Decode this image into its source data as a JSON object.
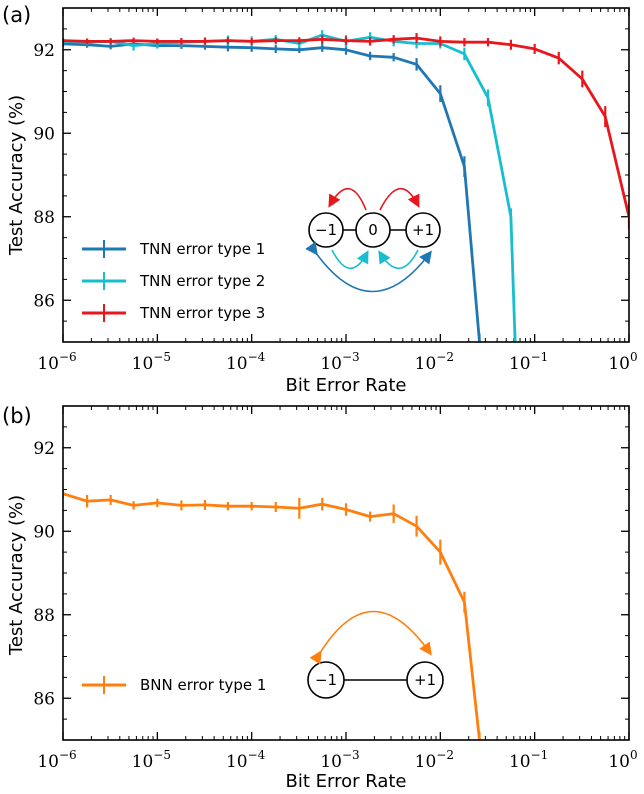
{
  "chart_data": [
    {
      "type": "line",
      "panel_label": "(a)",
      "xlabel": "Bit Error Rate",
      "ylabel": "Test Accuracy (%)",
      "xscale": "log",
      "xlim": [
        1e-06,
        1
      ],
      "ylim": [
        85,
        93
      ],
      "x_ticks": [
        1e-06,
        1e-05,
        0.0001,
        0.001,
        0.01,
        0.1,
        1
      ],
      "x_tick_labels": [
        {
          "base": "10",
          "exp": "−6"
        },
        {
          "base": "10",
          "exp": "−5"
        },
        {
          "base": "10",
          "exp": "−4"
        },
        {
          "base": "10",
          "exp": "−3"
        },
        {
          "base": "10",
          "exp": "−2"
        },
        {
          "base": "10",
          "exp": "−1"
        },
        {
          "base": "10",
          "exp": "0"
        }
      ],
      "y_ticks": [
        86,
        88,
        90,
        92
      ],
      "legend_position": "lower-left",
      "series": [
        {
          "name": "TNN error type 1",
          "color": "#1f77b4",
          "points": [
            [
              1e-06,
              92.14,
              0.07
            ],
            [
              1.8e-06,
              92.12,
              0.07
            ],
            [
              3.2e-06,
              92.08,
              0.07
            ],
            [
              5.6e-06,
              92.14,
              0.08
            ],
            [
              1e-05,
              92.1,
              0.07
            ],
            [
              1.8e-05,
              92.1,
              0.08
            ],
            [
              3.2e-05,
              92.08,
              0.08
            ],
            [
              5.6e-05,
              92.06,
              0.1
            ],
            [
              0.0001,
              92.05,
              0.1
            ],
            [
              0.00018,
              92.02,
              0.1
            ],
            [
              0.00032,
              92.0,
              0.08
            ],
            [
              0.00056,
              92.05,
              0.1
            ],
            [
              0.001,
              92.0,
              0.12
            ],
            [
              0.0018,
              91.85,
              0.1
            ],
            [
              0.0032,
              91.82,
              0.1
            ],
            [
              0.0056,
              91.65,
              0.15
            ],
            [
              0.01,
              90.95,
              0.2
            ],
            [
              0.018,
              89.2,
              0.25
            ],
            [
              0.026,
              85.0,
              0.2
            ]
          ]
        },
        {
          "name": "TNN error type 2",
          "color": "#17becf",
          "points": [
            [
              1e-06,
              92.2,
              0.07
            ],
            [
              1.8e-06,
              92.18,
              0.07
            ],
            [
              3.2e-06,
              92.2,
              0.08
            ],
            [
              5.6e-06,
              92.1,
              0.12
            ],
            [
              1e-05,
              92.15,
              0.12
            ],
            [
              1.8e-05,
              92.18,
              0.1
            ],
            [
              3.2e-05,
              92.2,
              0.1
            ],
            [
              5.6e-05,
              92.22,
              0.12
            ],
            [
              0.0001,
              92.2,
              0.12
            ],
            [
              0.00018,
              92.25,
              0.1
            ],
            [
              0.00032,
              92.15,
              0.1
            ],
            [
              0.00056,
              92.35,
              0.12
            ],
            [
              0.001,
              92.2,
              0.15
            ],
            [
              0.0018,
              92.3,
              0.12
            ],
            [
              0.0032,
              92.2,
              0.12
            ],
            [
              0.0056,
              92.15,
              0.12
            ],
            [
              0.01,
              92.15,
              0.12
            ],
            [
              0.018,
              91.9,
              0.15
            ],
            [
              0.032,
              90.85,
              0.2
            ],
            [
              0.056,
              88.0,
              0.2
            ],
            [
              0.062,
              85.0,
              0.3
            ]
          ]
        },
        {
          "name": "TNN error type 3",
          "color": "#e8171b",
          "points": [
            [
              1e-06,
              92.22,
              0.06
            ],
            [
              1.8e-06,
              92.2,
              0.07
            ],
            [
              3.2e-06,
              92.2,
              0.07
            ],
            [
              5.6e-06,
              92.22,
              0.07
            ],
            [
              1e-05,
              92.2,
              0.07
            ],
            [
              1.8e-05,
              92.2,
              0.08
            ],
            [
              3.2e-05,
              92.2,
              0.08
            ],
            [
              5.6e-05,
              92.22,
              0.08
            ],
            [
              0.0001,
              92.2,
              0.08
            ],
            [
              0.00018,
              92.22,
              0.08
            ],
            [
              0.00032,
              92.22,
              0.08
            ],
            [
              0.00056,
              92.25,
              0.1
            ],
            [
              0.001,
              92.22,
              0.1
            ],
            [
              0.0018,
              92.2,
              0.1
            ],
            [
              0.0032,
              92.25,
              0.1
            ],
            [
              0.0056,
              92.28,
              0.12
            ],
            [
              0.01,
              92.2,
              0.12
            ],
            [
              0.018,
              92.18,
              0.1
            ],
            [
              0.032,
              92.18,
              0.1
            ],
            [
              0.056,
              92.12,
              0.12
            ],
            [
              0.1,
              92.02,
              0.12
            ],
            [
              0.18,
              91.8,
              0.15
            ],
            [
              0.32,
              91.3,
              0.2
            ],
            [
              0.56,
              90.4,
              0.25
            ],
            [
              1,
              88.0,
              0.3
            ]
          ]
        }
      ],
      "diagram": {
        "nodes": [
          "−1",
          "0",
          "+1"
        ],
        "arrow_colors": {
          "type1": "#1f77b4",
          "type2": "#17becf",
          "type3": "#e8171b"
        }
      }
    },
    {
      "type": "line",
      "panel_label": "(b)",
      "xlabel": "Bit Error Rate",
      "ylabel": "Test Accuracy (%)",
      "xscale": "log",
      "xlim": [
        1e-06,
        1
      ],
      "ylim": [
        85,
        93
      ],
      "x_ticks": [
        1e-06,
        1e-05,
        0.0001,
        0.001,
        0.01,
        0.1,
        1
      ],
      "x_tick_labels": [
        {
          "base": "10",
          "exp": "−6"
        },
        {
          "base": "10",
          "exp": "−5"
        },
        {
          "base": "10",
          "exp": "−4"
        },
        {
          "base": "10",
          "exp": "−3"
        },
        {
          "base": "10",
          "exp": "−2"
        },
        {
          "base": "10",
          "exp": "−1"
        },
        {
          "base": "10",
          "exp": "0"
        }
      ],
      "y_ticks": [
        86,
        88,
        90,
        92
      ],
      "legend_position": "lower-left",
      "series": [
        {
          "name": "BNN error type 1",
          "color": "#ff7f0e",
          "points": [
            [
              1e-06,
              90.9,
              0.1
            ],
            [
              1.8e-06,
              90.72,
              0.15
            ],
            [
              3.2e-06,
              90.75,
              0.12
            ],
            [
              5.6e-06,
              90.62,
              0.1
            ],
            [
              1e-05,
              90.68,
              0.1
            ],
            [
              1.8e-05,
              90.62,
              0.12
            ],
            [
              3.2e-05,
              90.63,
              0.12
            ],
            [
              5.6e-05,
              90.6,
              0.1
            ],
            [
              0.0001,
              90.6,
              0.1
            ],
            [
              0.00018,
              90.58,
              0.12
            ],
            [
              0.00032,
              90.55,
              0.25
            ],
            [
              0.00056,
              90.65,
              0.15
            ],
            [
              0.001,
              90.52,
              0.15
            ],
            [
              0.0018,
              90.35,
              0.12
            ],
            [
              0.0032,
              90.42,
              0.22
            ],
            [
              0.0056,
              90.12,
              0.25
            ],
            [
              0.01,
              89.5,
              0.3
            ],
            [
              0.018,
              88.3,
              0.25
            ],
            [
              0.026,
              85.0,
              0.2
            ]
          ]
        }
      ],
      "diagram": {
        "nodes": [
          "−1",
          "+1"
        ],
        "arrow_colors": {
          "type1": "#ff7f0e"
        }
      }
    }
  ]
}
